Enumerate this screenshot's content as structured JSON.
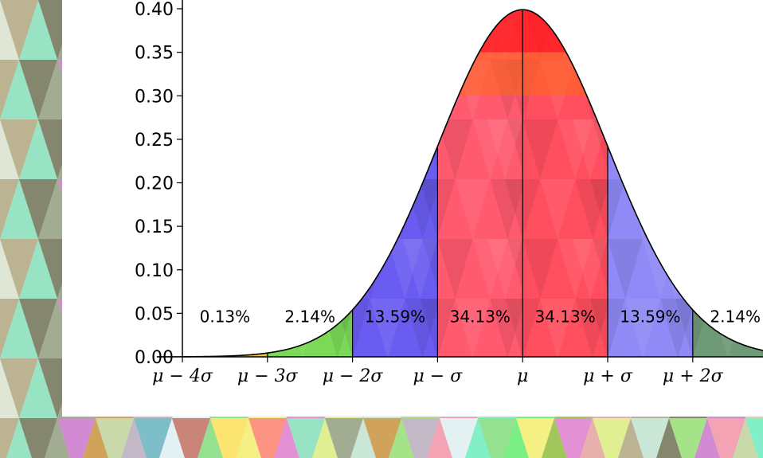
{
  "chart_data": {
    "type": "area",
    "title": "",
    "xlabel": "",
    "ylabel": "",
    "ylim": [
      0,
      0.4
    ],
    "xlim": [
      -4.3,
      2.45
    ],
    "y_ticks": [
      "0.00",
      "0.05",
      "0.10",
      "0.15",
      "0.20",
      "0.25",
      "0.30",
      "0.35",
      "0.40"
    ],
    "x_ticks": [
      {
        "value": -4,
        "label": "μ − 4σ"
      },
      {
        "value": -3,
        "label": "μ − 3σ"
      },
      {
        "value": -2,
        "label": "μ − 2σ"
      },
      {
        "value": -1,
        "label": "μ − σ"
      },
      {
        "value": 0,
        "label": "μ"
      },
      {
        "value": 1,
        "label": "μ + σ"
      },
      {
        "value": 2,
        "label": "μ + 2σ"
      }
    ],
    "curve": "standard normal density",
    "bands": [
      {
        "from": -4.5,
        "to": -4,
        "fill": "#b3a0e3"
      },
      {
        "from": -4,
        "to": -3,
        "fill": "#e7c24a"
      },
      {
        "from": -3,
        "to": -2,
        "fill": "#7bd957"
      },
      {
        "from": -2,
        "to": -1,
        "fill": "#6a5cf0"
      },
      {
        "from": -1,
        "to": 0,
        "fill": "#ff5a6e"
      },
      {
        "from": 0,
        "to": 1,
        "fill": "#ff4f5f"
      },
      {
        "from": 1,
        "to": 2,
        "fill": "#8f8af5"
      },
      {
        "from": 2,
        "to": 3,
        "fill": "#6f9a78"
      }
    ],
    "annotations": [
      {
        "x": -3.5,
        "label": "0.13%"
      },
      {
        "x": -2.5,
        "label": "2.14%"
      },
      {
        "x": -1.5,
        "label": "13.59%"
      },
      {
        "x": -0.5,
        "label": "34.13%"
      },
      {
        "x": 0.5,
        "label": "34.13%"
      },
      {
        "x": 1.5,
        "label": "13.59%"
      },
      {
        "x": 2.5,
        "label": "2.14%"
      }
    ],
    "grid": false
  },
  "colors": {
    "curve": "#000000",
    "axis": "#000000"
  }
}
